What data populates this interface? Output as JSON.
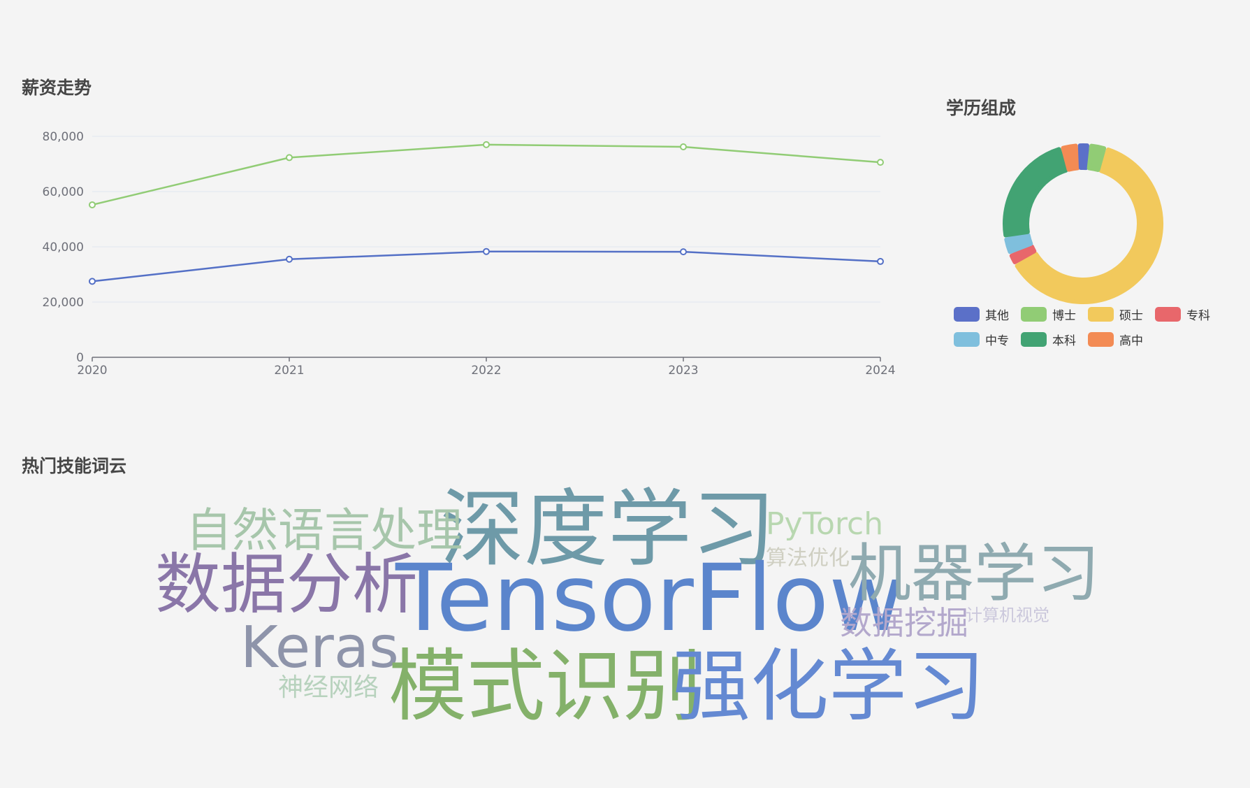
{
  "salary_panel": {
    "title": "薪资走势"
  },
  "education_panel": {
    "title": "学历组成"
  },
  "skills_panel": {
    "title": "热门技能词云"
  },
  "chart_data": [
    {
      "type": "line",
      "title": "薪资走势",
      "x": [
        "2020",
        "2021",
        "2022",
        "2023",
        "2024"
      ],
      "ylim": [
        0,
        80000
      ],
      "yticks": [
        0,
        20000,
        40000,
        60000,
        80000
      ],
      "ytick_labels": [
        "0",
        "20,000",
        "40,000",
        "60,000",
        "80,000"
      ],
      "grid": true,
      "series": [
        {
          "values": [
            27500,
            35500,
            38300,
            38200,
            34700
          ],
          "color": "#5470c6"
        },
        {
          "values": [
            55200,
            72300,
            77000,
            76200,
            70600
          ],
          "color": "#91cc75"
        }
      ]
    },
    {
      "type": "pie",
      "donut": true,
      "title": "学历组成",
      "legend_position": "bottom",
      "slices": [
        {
          "label": "硕士",
          "value": 53,
          "color": "#f2c95c"
        },
        {
          "label": "专科",
          "value": 2,
          "color": "#e8676b"
        },
        {
          "label": "中专",
          "value": 3,
          "color": "#7fbfdd"
        },
        {
          "label": "本科",
          "value": 20,
          "color": "#42a373"
        },
        {
          "label": "高中",
          "value": 3,
          "color": "#f38b54"
        },
        {
          "label": "其他",
          "value": 2,
          "color": "#5b70c8"
        },
        {
          "label": "博士",
          "value": 3,
          "color": "#91cc75"
        }
      ],
      "legend": [
        {
          "label": "其他",
          "color": "#5b70c8"
        },
        {
          "label": "博士",
          "color": "#91cc75"
        },
        {
          "label": "硕士",
          "color": "#f2c95c"
        },
        {
          "label": "专科",
          "color": "#e8676b"
        },
        {
          "label": "中专",
          "color": "#7fbfdd"
        },
        {
          "label": "本科",
          "color": "#42a373"
        },
        {
          "label": "高中",
          "color": "#f38b54"
        }
      ]
    }
  ],
  "word_cloud": [
    {
      "text": "深度学习",
      "color": "#6e9aa8"
    },
    {
      "text": "自然语言处理",
      "color": "#a7c6ab"
    },
    {
      "text": "PyTorch",
      "color": "#b8d7b0"
    },
    {
      "text": "数据分析",
      "color": "#8a76a8"
    },
    {
      "text": "TensorFlow",
      "color": "#5b85cc"
    },
    {
      "text": "机器学习",
      "color": "#8faab0"
    },
    {
      "text": "算法优化",
      "color": "#cfcfc2"
    },
    {
      "text": "数据挖掘",
      "color": "#b3a8cc"
    },
    {
      "text": "计算机视觉",
      "color": "#cbc8dc"
    },
    {
      "text": "Keras",
      "color": "#8e94aa"
    },
    {
      "text": "神经网络",
      "color": "#b7d2bd"
    },
    {
      "text": "模式识别",
      "color": "#84b16a"
    },
    {
      "text": "强化学习",
      "color": "#6489d2"
    }
  ]
}
